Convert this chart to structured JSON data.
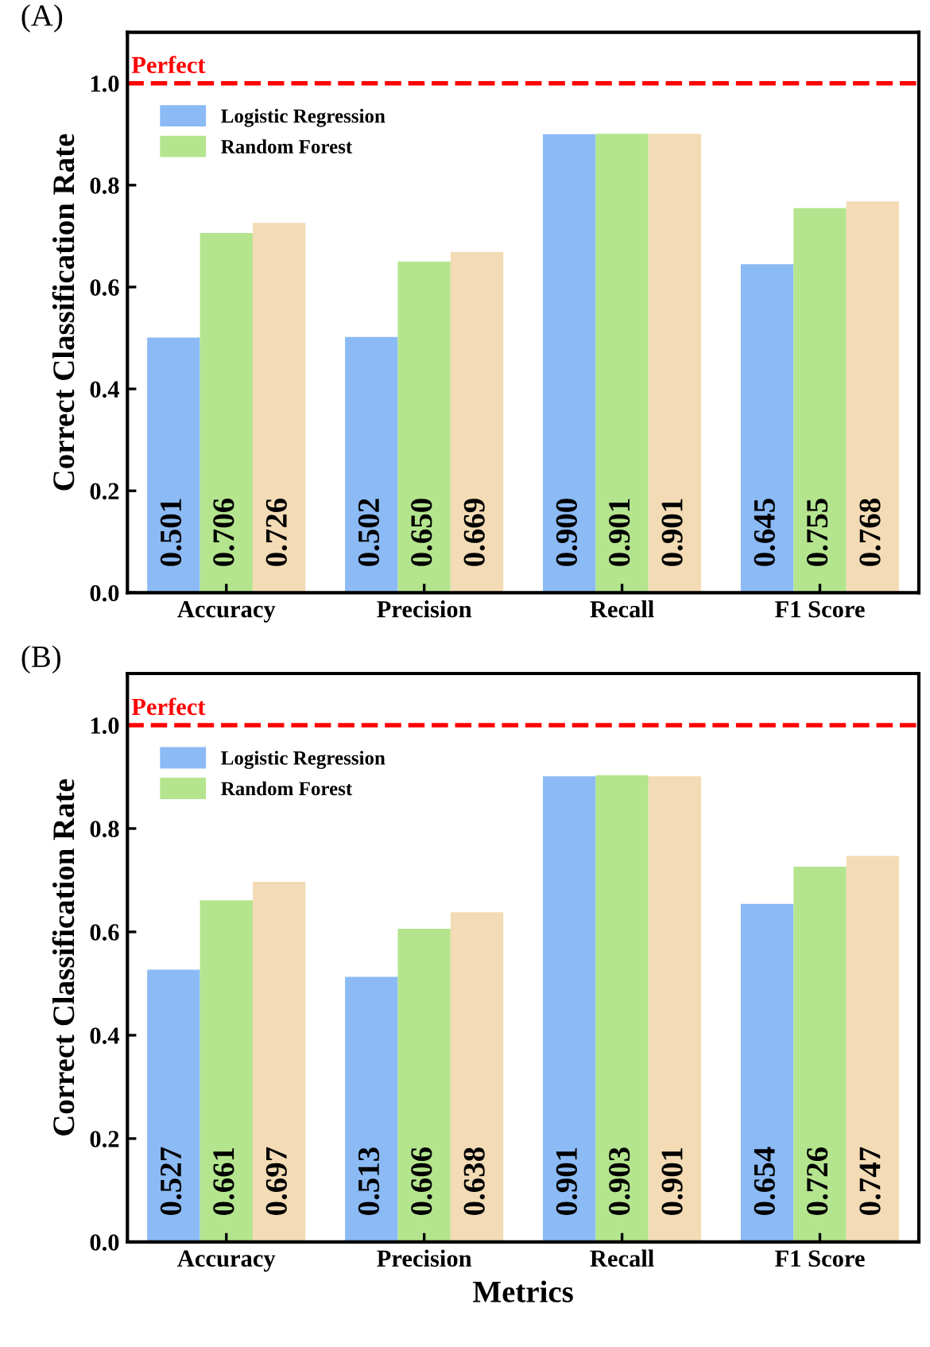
{
  "chart_data": [
    {
      "type": "bar",
      "title": "(A)",
      "ylabel": "Correct Classification Rate",
      "categories": [
        "Accuracy",
        "Precision",
        "Recall",
        "F1 Score"
      ],
      "series": [
        {
          "name": "Logistic Regression",
          "color": "#8bbaf5",
          "values": [
            0.501,
            0.502,
            0.9,
            0.645
          ],
          "value_labels": [
            "0.501",
            "0.502",
            "0.900",
            "0.645"
          ]
        },
        {
          "name": "Random Forest",
          "color": "#b4e58e",
          "values": [
            0.706,
            0.65,
            0.901,
            0.755
          ],
          "value_labels": [
            "0.706",
            "0.650",
            "0.901",
            "0.755"
          ]
        },
        {
          "color": "#f3dbb5",
          "values": [
            0.726,
            0.669,
            0.901,
            0.768
          ],
          "value_labels": [
            "0.726",
            "0.669",
            "0.901",
            "0.768"
          ]
        }
      ],
      "ylim": [
        0,
        1.1
      ],
      "yticks": [
        {
          "value": 0,
          "label": "0.0"
        },
        {
          "value": 0.2,
          "label": "0.2"
        },
        {
          "value": 0.4,
          "label": "0.4"
        },
        {
          "value": 0.6,
          "label": "0.6"
        },
        {
          "value": 0.8,
          "label": "0.8"
        },
        {
          "value": 1,
          "label": "1.0"
        }
      ],
      "ref_lines": [
        {
          "axis": "y",
          "value": 1.0,
          "label": "Perfect",
          "color": "#ff0000",
          "line_style": "dashed"
        }
      ],
      "legend": "top left",
      "grid": false
    },
    {
      "type": "bar",
      "title": "(B)",
      "xlabel": "Metrics",
      "ylabel": "Correct Classification Rate",
      "categories": [
        "Accuracy",
        "Precision",
        "Recall",
        "F1 Score"
      ],
      "series": [
        {
          "name": "Logistic Regression",
          "color": "#8bbaf5",
          "values": [
            0.527,
            0.513,
            0.901,
            0.654
          ],
          "value_labels": [
            "0.527",
            "0.513",
            "0.901",
            "0.654"
          ]
        },
        {
          "name": "Random Forest",
          "color": "#b4e58e",
          "values": [
            0.661,
            0.606,
            0.903,
            0.726
          ],
          "value_labels": [
            "0.661",
            "0.606",
            "0.903",
            "0.726"
          ]
        },
        {
          "color": "#f3dbb5",
          "values": [
            0.697,
            0.638,
            0.901,
            0.747
          ],
          "value_labels": [
            "0.697",
            "0.638",
            "0.901",
            "0.747"
          ]
        }
      ],
      "ylim": [
        0,
        1.1
      ],
      "yticks": [
        {
          "value": 0,
          "label": "0.0"
        },
        {
          "value": 0.2,
          "label": "0.2"
        },
        {
          "value": 0.4,
          "label": "0.4"
        },
        {
          "value": 0.6,
          "label": "0.6"
        },
        {
          "value": 0.8,
          "label": "0.8"
        },
        {
          "value": 1,
          "label": "1.0"
        }
      ],
      "ref_lines": [
        {
          "axis": "y",
          "value": 1.0,
          "label": "Perfect",
          "color": "#ff0000",
          "line_style": "dashed"
        }
      ],
      "legend": "top left",
      "grid": false
    }
  ]
}
